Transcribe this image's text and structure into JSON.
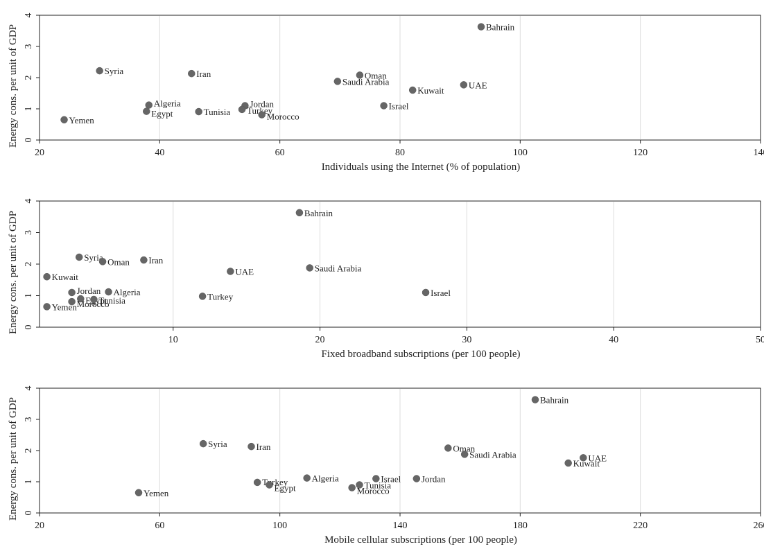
{
  "chart_data": [
    {
      "type": "scatter",
      "xlabel": "Individuals using the Internet (% of population)",
      "ylabel": "Energy cons. per unit of GDP",
      "xlim": [
        20,
        140
      ],
      "ylim": [
        0,
        4
      ],
      "xticks": [
        20,
        40,
        60,
        80,
        100,
        120,
        140
      ],
      "yticks": [
        0,
        1,
        2,
        3,
        4
      ],
      "grid": true,
      "points": [
        {
          "label": "Bahrain",
          "x": 93.5,
          "y": 3.63
        },
        {
          "label": "Syria",
          "x": 30,
          "y": 2.22
        },
        {
          "label": "Iran",
          "x": 45.3,
          "y": 2.13
        },
        {
          "label": "Oman",
          "x": 73.3,
          "y": 2.08
        },
        {
          "label": "Saudi Arabia",
          "x": 69.6,
          "y": 1.88
        },
        {
          "label": "UAE",
          "x": 90.6,
          "y": 1.77
        },
        {
          "label": "Kuwait",
          "x": 82.1,
          "y": 1.6
        },
        {
          "label": "Algeria",
          "x": 38.2,
          "y": 1.12
        },
        {
          "label": "Jordan",
          "x": 54.2,
          "y": 1.1
        },
        {
          "label": "Israel",
          "x": 77.3,
          "y": 1.1
        },
        {
          "label": "Turkey",
          "x": 53.7,
          "y": 0.98
        },
        {
          "label": "Egypt",
          "x": 37.8,
          "y": 0.92
        },
        {
          "label": "Tunisia",
          "x": 46.5,
          "y": 0.91
        },
        {
          "label": "Morocco",
          "x": 57,
          "y": 0.81
        },
        {
          "label": "Yemen",
          "x": 24.1,
          "y": 0.65
        }
      ]
    },
    {
      "type": "scatter",
      "xlabel": "Fixed broadband subscriptions (per 100 people)",
      "ylabel": "Energy cons. per unit of GDP",
      "xlim": [
        0.9,
        50
      ],
      "ylim": [
        0,
        4
      ],
      "xticks": [
        10,
        20,
        30,
        40,
        50
      ],
      "yticks": [
        0,
        1,
        2,
        3,
        4
      ],
      "grid": true,
      "points": [
        {
          "label": "Bahrain",
          "x": 18.6,
          "y": 3.63
        },
        {
          "label": "Syria",
          "x": 3.6,
          "y": 2.22
        },
        {
          "label": "Oman",
          "x": 5.2,
          "y": 2.08
        },
        {
          "label": "Iran",
          "x": 8,
          "y": 2.13
        },
        {
          "label": "Saudi Arabia",
          "x": 19.3,
          "y": 1.88
        },
        {
          "label": "UAE",
          "x": 13.9,
          "y": 1.77
        },
        {
          "label": "Kuwait",
          "x": 1.4,
          "y": 1.6
        },
        {
          "label": "Jordan",
          "x": 3.1,
          "y": 1.1
        },
        {
          "label": "Algeria",
          "x": 5.6,
          "y": 1.12
        },
        {
          "label": "Israel",
          "x": 27.2,
          "y": 1.1
        },
        {
          "label": "Turkey",
          "x": 12,
          "y": 0.98
        },
        {
          "label": "Egypt",
          "x": 3.7,
          "y": 0.9
        },
        {
          "label": "Tunisia",
          "x": 4.6,
          "y": 0.88
        },
        {
          "label": "Morocco",
          "x": 3.1,
          "y": 0.81
        },
        {
          "label": "Yemen",
          "x": 1.4,
          "y": 0.65
        }
      ]
    },
    {
      "type": "scatter",
      "xlabel": "Mobile cellular subscriptions (per 100 people)",
      "ylabel": "Energy cons. per unit of GDP",
      "xlim": [
        20,
        260
      ],
      "ylim": [
        0,
        4
      ],
      "xticks": [
        20,
        60,
        100,
        140,
        180,
        220,
        260
      ],
      "yticks": [
        0,
        1,
        2,
        3,
        4
      ],
      "grid": true,
      "points": [
        {
          "label": "Bahrain",
          "x": 185,
          "y": 3.63
        },
        {
          "label": "Syria",
          "x": 74.5,
          "y": 2.22
        },
        {
          "label": "Iran",
          "x": 90.5,
          "y": 2.13
        },
        {
          "label": "Oman",
          "x": 156,
          "y": 2.08
        },
        {
          "label": "Saudi Arabia",
          "x": 161.5,
          "y": 1.88
        },
        {
          "label": "UAE",
          "x": 201,
          "y": 1.77
        },
        {
          "label": "Kuwait",
          "x": 196,
          "y": 1.6
        },
        {
          "label": "Algeria",
          "x": 109,
          "y": 1.12
        },
        {
          "label": "Israel",
          "x": 132,
          "y": 1.1
        },
        {
          "label": "Jordan",
          "x": 145.5,
          "y": 1.1
        },
        {
          "label": "Turkey",
          "x": 92.5,
          "y": 0.98
        },
        {
          "label": "Egypt",
          "x": 96.5,
          "y": 0.9
        },
        {
          "label": "Tunisia",
          "x": 126.5,
          "y": 0.9
        },
        {
          "label": "Morocco",
          "x": 124,
          "y": 0.81
        },
        {
          "label": "Yemen",
          "x": 53,
          "y": 0.65
        }
      ]
    }
  ]
}
